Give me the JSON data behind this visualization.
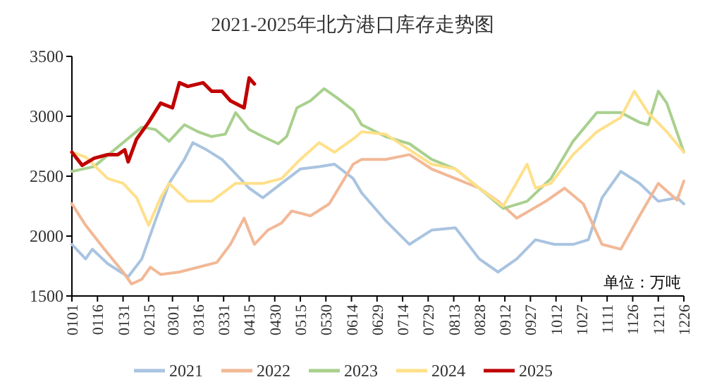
{
  "chart_data": {
    "type": "line",
    "title": "2021-2025年北方港口库存走势图",
    "annotations": [
      "单位：万吨"
    ],
    "xlim": [
      "--01-01",
      "--12-26"
    ],
    "xticks": [
      {
        "value": "--01-01",
        "label": "0101"
      },
      {
        "value": "--01-16",
        "label": "0116"
      },
      {
        "value": "--01-31",
        "label": "0131"
      },
      {
        "value": "--02-15",
        "label": "0215"
      },
      {
        "value": "--03-01",
        "label": "0301"
      },
      {
        "value": "--03-16",
        "label": "0316"
      },
      {
        "value": "--03-31",
        "label": "0331"
      },
      {
        "value": "--04-15",
        "label": "0415"
      },
      {
        "value": "--04-30",
        "label": "0430"
      },
      {
        "value": "--05-15",
        "label": "0515"
      },
      {
        "value": "--05-30",
        "label": "0530"
      },
      {
        "value": "--06-14",
        "label": "0614"
      },
      {
        "value": "--06-29",
        "label": "0629"
      },
      {
        "value": "--07-14",
        "label": "0714"
      },
      {
        "value": "--07-29",
        "label": "0729"
      },
      {
        "value": "--08-13",
        "label": "0813"
      },
      {
        "value": "--08-28",
        "label": "0828"
      },
      {
        "value": "--09-12",
        "label": "0912"
      },
      {
        "value": "--09-27",
        "label": "0927"
      },
      {
        "value": "--10-12",
        "label": "1012"
      },
      {
        "value": "--10-27",
        "label": "1027"
      },
      {
        "value": "--11-11",
        "label": "1111"
      },
      {
        "value": "--11-26",
        "label": "1126"
      },
      {
        "value": "--12-11",
        "label": "1211"
      },
      {
        "value": "--12-26",
        "label": "1226"
      }
    ],
    "ylim": [
      1500,
      3500
    ],
    "yticks": [
      1500,
      2000,
      2500,
      3000,
      3500
    ],
    "grid": false,
    "legend": "bottom",
    "series": [
      {
        "name": "2021",
        "color": "#a9c4e0",
        "x": [
          "--01-01",
          "--01-09",
          "--01-13",
          "--01-22",
          "--02-03",
          "--02-11",
          "--02-19",
          "--02-27",
          "--03-08",
          "--03-13",
          "--03-21",
          "--03-30",
          "--04-07",
          "--04-15",
          "--04-23",
          "--05-04",
          "--05-15",
          "--05-26",
          "--06-04",
          "--06-15",
          "--06-20",
          "--07-04",
          "--07-18",
          "--07-31",
          "--08-14",
          "--08-28",
          "--09-08",
          "--09-19",
          "--09-30",
          "--10-11",
          "--10-22",
          "--10-31",
          "--11-08",
          "--11-19",
          "--11-30",
          "--12-11",
          "--12-22",
          "--12-26"
        ],
        "values": [
          1930,
          1810,
          1890,
          1770,
          1660,
          1810,
          2130,
          2440,
          2640,
          2780,
          2720,
          2640,
          2520,
          2400,
          2320,
          2440,
          2560,
          2580,
          2600,
          2480,
          2360,
          2130,
          1930,
          2050,
          2070,
          1810,
          1700,
          1810,
          1970,
          1930,
          1930,
          1970,
          2320,
          2540,
          2440,
          2290,
          2320,
          2270
        ]
      },
      {
        "name": "2022",
        "color": "#f2b896",
        "x": [
          "--01-01",
          "--01-09",
          "--01-20",
          "--01-31",
          "--02-05",
          "--02-11",
          "--02-16",
          "--02-22",
          "--03-05",
          "--03-16",
          "--03-27",
          "--04-04",
          "--04-12",
          "--04-18",
          "--04-26",
          "--05-04",
          "--05-10",
          "--05-21",
          "--06-01",
          "--06-15",
          "--06-20",
          "--07-04",
          "--07-18",
          "--07-31",
          "--08-14",
          "--08-28",
          "--09-08",
          "--09-19",
          "--10-06",
          "--10-17",
          "--10-28",
          "--11-08",
          "--11-19",
          "--11-30",
          "--12-11",
          "--12-22",
          "--12-26"
        ],
        "values": [
          2270,
          2090,
          1890,
          1700,
          1600,
          1640,
          1740,
          1680,
          1700,
          1740,
          1780,
          1930,
          2150,
          1930,
          2050,
          2110,
          2210,
          2170,
          2270,
          2600,
          2640,
          2640,
          2680,
          2560,
          2480,
          2400,
          2290,
          2150,
          2290,
          2400,
          2270,
          1930,
          1890,
          2170,
          2440,
          2300,
          2460
        ]
      },
      {
        "name": "2023",
        "color": "#a9d08e",
        "x": [
          "--01-01",
          "--01-14",
          "--01-31",
          "--02-11",
          "--02-19",
          "--02-27",
          "--03-08",
          "--03-16",
          "--03-24",
          "--04-01",
          "--04-07",
          "--04-15",
          "--04-23",
          "--05-02",
          "--05-07",
          "--05-13",
          "--05-21",
          "--05-29",
          "--06-06",
          "--06-15",
          "--06-20",
          "--07-04",
          "--07-18",
          "--07-31",
          "--08-14",
          "--08-28",
          "--09-11",
          "--09-25",
          "--10-09",
          "--10-22",
          "--11-05",
          "--11-19",
          "--11-30",
          "--12-05",
          "--12-11",
          "--12-16",
          "--12-26"
        ],
        "values": [
          2540,
          2580,
          2780,
          2910,
          2890,
          2790,
          2930,
          2870,
          2830,
          2850,
          3030,
          2890,
          2830,
          2770,
          2830,
          3070,
          3130,
          3230,
          3150,
          3050,
          2930,
          2830,
          2770,
          2640,
          2560,
          2400,
          2230,
          2290,
          2480,
          2790,
          3030,
          3030,
          2950,
          2930,
          3210,
          3110,
          2700
        ]
      },
      {
        "name": "2024",
        "color": "#ffe08a",
        "x": [
          "--01-01",
          "--01-09",
          "--01-22",
          "--01-31",
          "--02-08",
          "--02-15",
          "--02-22",
          "--02-27",
          "--03-10",
          "--03-24",
          "--04-07",
          "--04-23",
          "--05-04",
          "--05-15",
          "--05-26",
          "--06-04",
          "--06-15",
          "--06-20",
          "--07-04",
          "--07-18",
          "--07-31",
          "--08-14",
          "--08-28",
          "--09-11",
          "--09-25",
          "--09-30",
          "--10-09",
          "--10-22",
          "--11-05",
          "--11-19",
          "--11-27",
          "--12-05",
          "--12-16",
          "--12-26"
        ],
        "values": [
          2700,
          2660,
          2480,
          2440,
          2320,
          2090,
          2320,
          2440,
          2290,
          2290,
          2440,
          2440,
          2480,
          2640,
          2780,
          2700,
          2810,
          2870,
          2850,
          2720,
          2600,
          2560,
          2400,
          2250,
          2600,
          2400,
          2440,
          2680,
          2870,
          2990,
          3210,
          3030,
          2870,
          2700
        ]
      },
      {
        "name": "2025",
        "color": "#c00000",
        "x": [
          "--01-01",
          "--01-07",
          "--01-14",
          "--01-22",
          "--01-28",
          "--02-01",
          "--02-03",
          "--02-08",
          "--02-15",
          "--02-22",
          "--03-01",
          "--03-05",
          "--03-10",
          "--03-19",
          "--03-24",
          "--03-30",
          "--04-04",
          "--04-12",
          "--04-15",
          "--04-18"
        ],
        "values": [
          2700,
          2590,
          2650,
          2680,
          2680,
          2720,
          2620,
          2810,
          2950,
          3110,
          3070,
          3280,
          3250,
          3280,
          3210,
          3210,
          3130,
          3070,
          3320,
          3270
        ]
      }
    ]
  }
}
